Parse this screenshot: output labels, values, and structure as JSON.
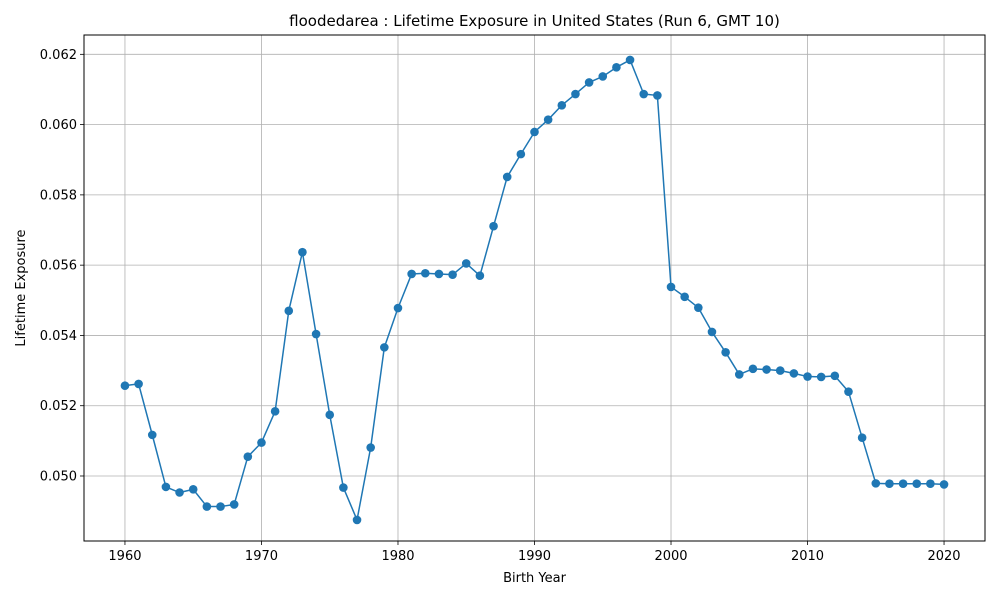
{
  "chart_data": {
    "type": "line",
    "title": "floodedarea : Lifetime Exposure in United States (Run 6, GMT 10)",
    "xlabel": "Birth Year",
    "ylabel": "Lifetime Exposure",
    "xlim": [
      1957,
      2023
    ],
    "ylim": [
      0.04815,
      0.06255
    ],
    "grid": true,
    "color": "#1f77b4",
    "x_ticks": [
      1960,
      1970,
      1980,
      1990,
      2000,
      2010,
      2020
    ],
    "x_tick_labels": [
      "1960",
      "1970",
      "1980",
      "1990",
      "2000",
      "2010",
      "2020"
    ],
    "y_ticks": [
      0.05,
      0.052,
      0.054,
      0.056,
      0.058,
      0.06,
      0.062
    ],
    "y_tick_labels": [
      "0.050",
      "0.052",
      "0.054",
      "0.056",
      "0.058",
      "0.060",
      "0.062"
    ],
    "series": [
      {
        "x": [
          1960,
          1961,
          1962,
          1963,
          1964,
          1965,
          1966,
          1967,
          1968,
          1969,
          1970,
          1971,
          1972,
          1973,
          1974,
          1975,
          1976,
          1977,
          1978,
          1979,
          1980,
          1981,
          1982,
          1983,
          1984,
          1985,
          1986,
          1987,
          1988,
          1989,
          1990,
          1991,
          1992,
          1993,
          1994,
          1995,
          1996,
          1997,
          1998,
          1999,
          2000,
          2001,
          2002,
          2003,
          2004,
          2005,
          2006,
          2007,
          2008,
          2009,
          2010,
          2011,
          2012,
          2013,
          2014,
          2015,
          2016,
          2017,
          2018,
          2019,
          2020
        ],
        "y": [
          0.05257,
          0.05262,
          0.05117,
          0.04969,
          0.04953,
          0.04962,
          0.04913,
          0.04913,
          0.04919,
          0.05055,
          0.05095,
          0.05184,
          0.0547,
          0.05637,
          0.05404,
          0.05174,
          0.04967,
          0.04875,
          0.05081,
          0.05366,
          0.05478,
          0.05575,
          0.05577,
          0.05575,
          0.05573,
          0.05605,
          0.0557,
          0.05711,
          0.05851,
          0.05916,
          0.05979,
          0.06014,
          0.06055,
          0.06087,
          0.0612,
          0.06137,
          0.06163,
          0.06184,
          0.06087,
          0.06083,
          0.05538,
          0.0551,
          0.05479,
          0.0541,
          0.05352,
          0.05289,
          0.05305,
          0.05303,
          0.053,
          0.05292,
          0.05283,
          0.05282,
          0.05285,
          0.0524,
          0.05109,
          0.04979,
          0.04978,
          0.04978,
          0.04978,
          0.04978,
          0.04976
        ]
      }
    ]
  }
}
